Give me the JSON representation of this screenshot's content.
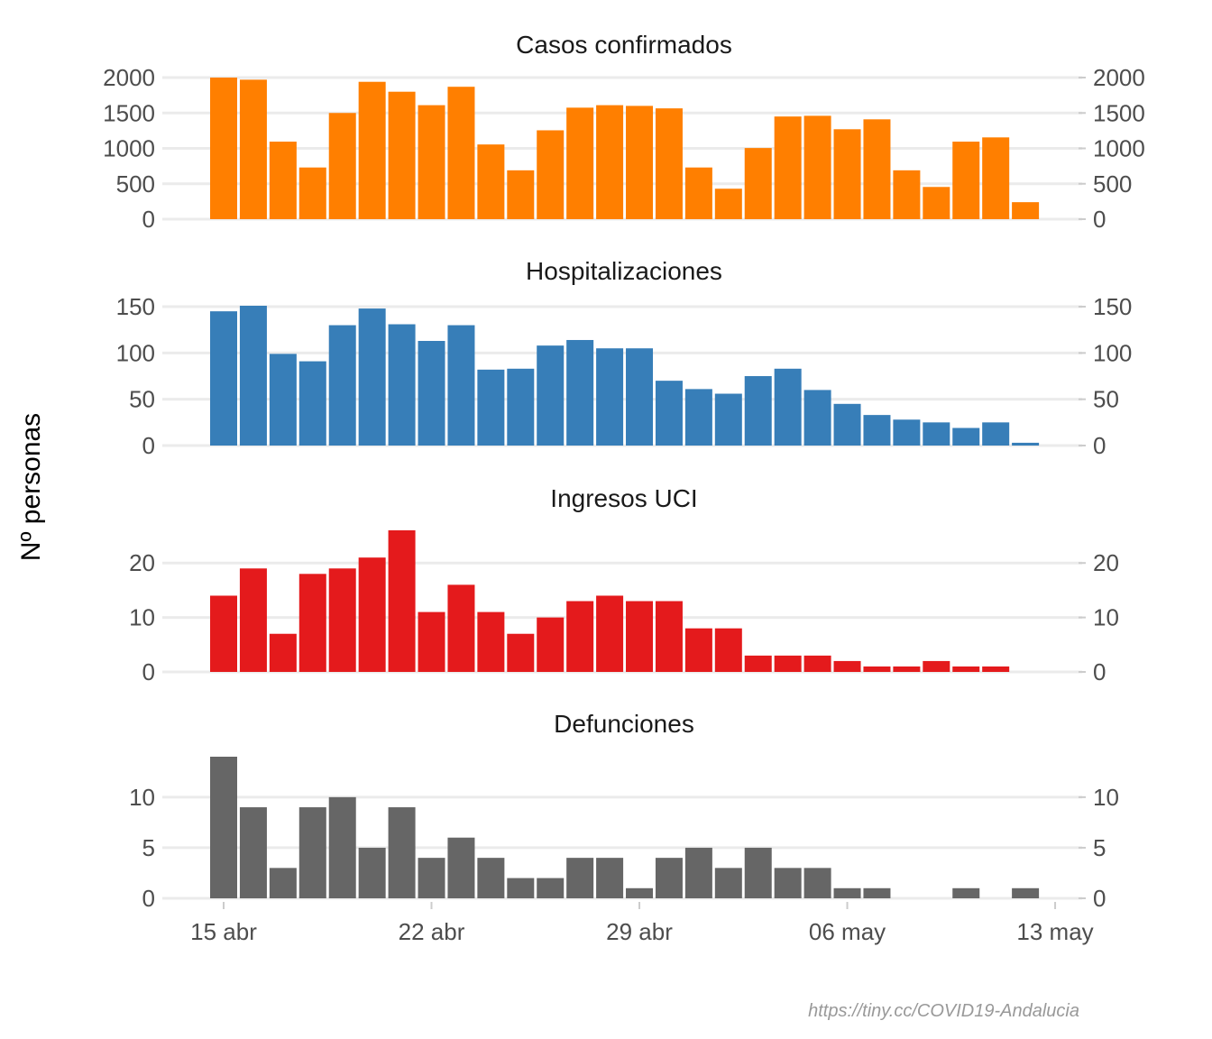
{
  "chart_data": {
    "type": "bar",
    "ylabel": "Nº personas",
    "caption": "https://tiny.cc/COVID19-Andalucia",
    "x_axis": {
      "start_date": "2020-04-15",
      "ticks": [
        {
          "day": 0,
          "label": "15 abr"
        },
        {
          "day": 7,
          "label": "22 abr"
        },
        {
          "day": 14,
          "label": "29 abr"
        },
        {
          "day": 21,
          "label": "06 may"
        },
        {
          "day": 28,
          "label": "13 may"
        }
      ]
    },
    "panels": [
      {
        "key": "casos",
        "title": "Casos confirmados",
        "color": "#ff7f00",
        "ylim": [
          0,
          2000
        ],
        "yticks": [
          0,
          500,
          1000,
          1500,
          2000
        ],
        "values": [
          2000,
          1970,
          1095,
          730,
          1500,
          1940,
          1800,
          1610,
          1870,
          1055,
          690,
          1255,
          1575,
          1610,
          1600,
          1565,
          730,
          430,
          1005,
          1450,
          1460,
          1270,
          1410,
          690,
          455,
          1095,
          1155,
          240
        ]
      },
      {
        "key": "hosp",
        "title": "Hospitalizaciones",
        "color": "#377eb8",
        "ylim": [
          0,
          151
        ],
        "yticks": [
          0,
          50,
          100,
          150
        ],
        "values": [
          145,
          151,
          99,
          91,
          130,
          148,
          131,
          113,
          130,
          82,
          83,
          108,
          114,
          105,
          105,
          70,
          61,
          56,
          75,
          83,
          60,
          45,
          33,
          28,
          25,
          19,
          25,
          3
        ]
      },
      {
        "key": "uci",
        "title": "Ingresos UCI",
        "color": "#e41a1c",
        "ylim": [
          0,
          26
        ],
        "yticks": [
          0,
          10,
          20
        ],
        "values": [
          14,
          19,
          7,
          18,
          19,
          21,
          26,
          11,
          16,
          11,
          7,
          10,
          13,
          14,
          13,
          13,
          8,
          8,
          3,
          3,
          3,
          2,
          1,
          1,
          2,
          1,
          1,
          0
        ]
      },
      {
        "key": "def",
        "title": "Defunciones",
        "color": "#666666",
        "ylim": [
          0,
          14
        ],
        "yticks": [
          0,
          5,
          10
        ],
        "values": [
          14,
          9,
          3,
          9,
          10,
          5,
          9,
          4,
          6,
          4,
          2,
          2,
          4,
          4,
          1,
          4,
          5,
          3,
          5,
          3,
          3,
          1,
          1,
          0,
          0,
          1,
          0,
          1
        ]
      }
    ]
  }
}
